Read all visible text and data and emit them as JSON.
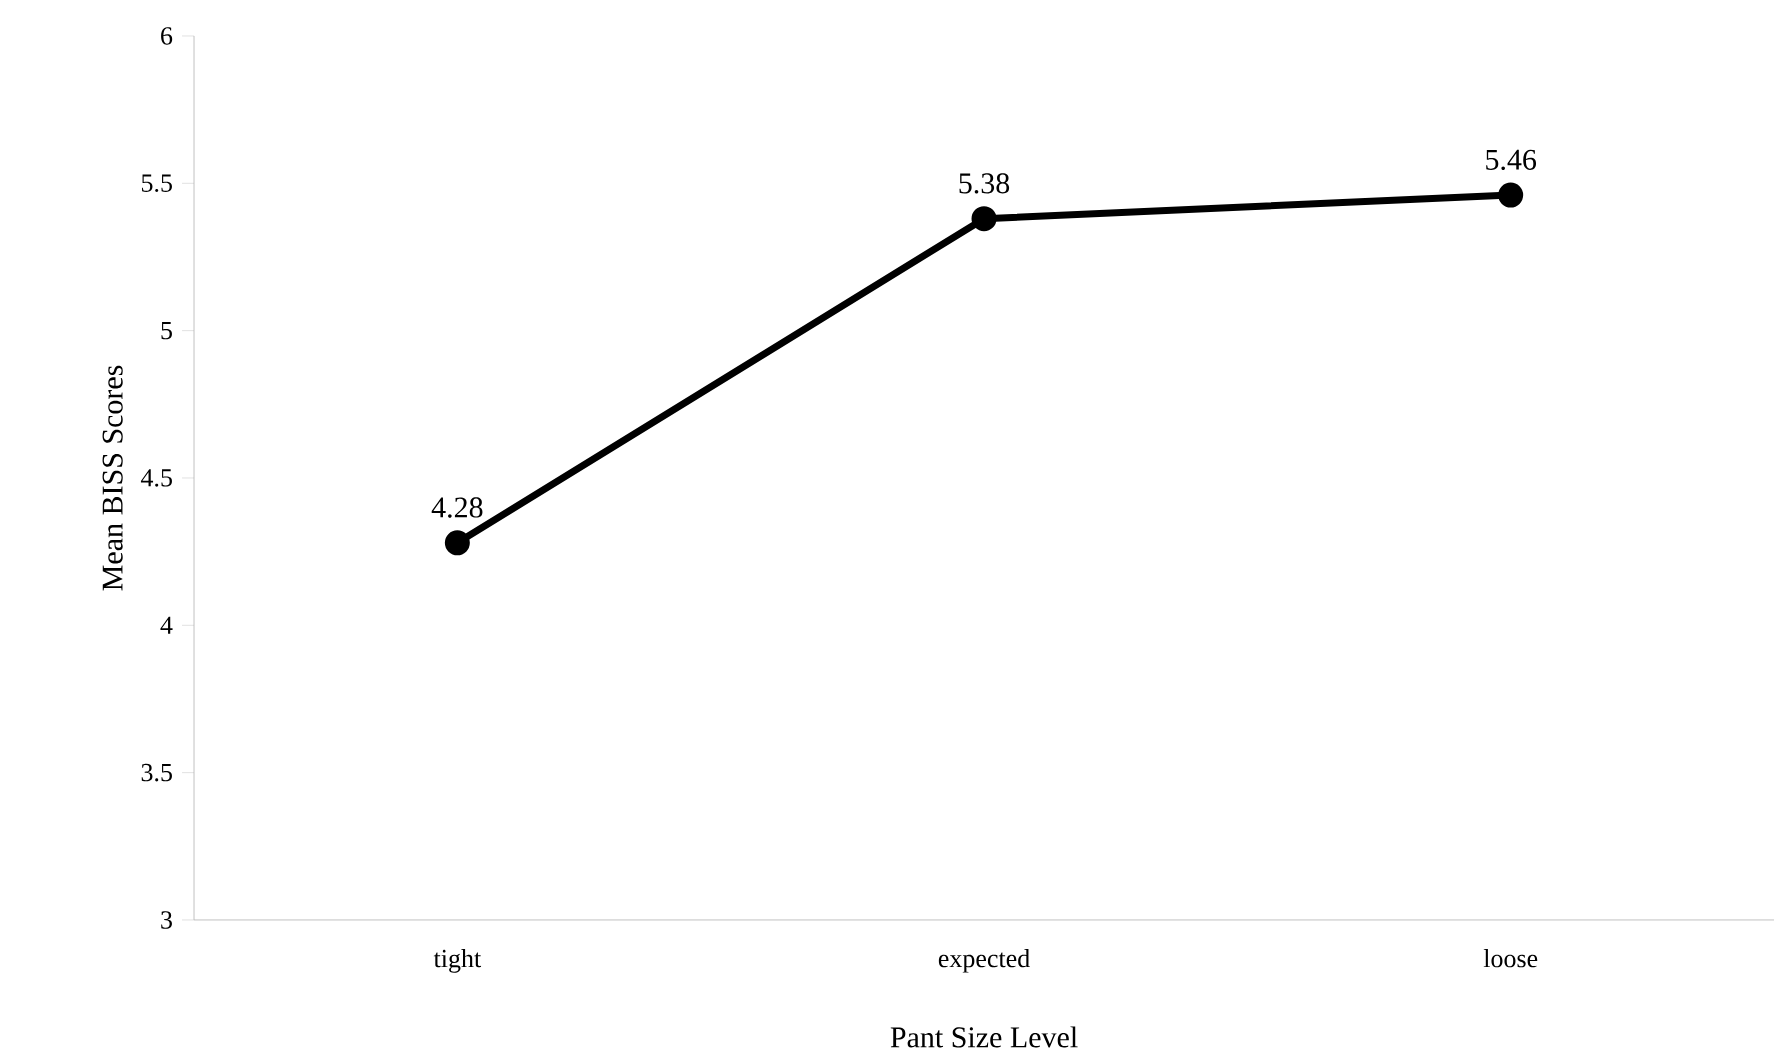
{
  "chart_data": {
    "type": "line",
    "xlabel": "Pant Size Level",
    "ylabel": "Mean BISS Scores",
    "categories": [
      "tight",
      "expected",
      "loose"
    ],
    "series": [
      {
        "color": "#000000",
        "values": [
          4.28,
          5.38,
          5.46
        ]
      }
    ],
    "ylim": [
      3,
      6
    ],
    "yticks": [
      3,
      3.5,
      4,
      4.5,
      5,
      5.5,
      6
    ],
    "marker": "circle",
    "line_style": "solid",
    "data_labels": true
  }
}
